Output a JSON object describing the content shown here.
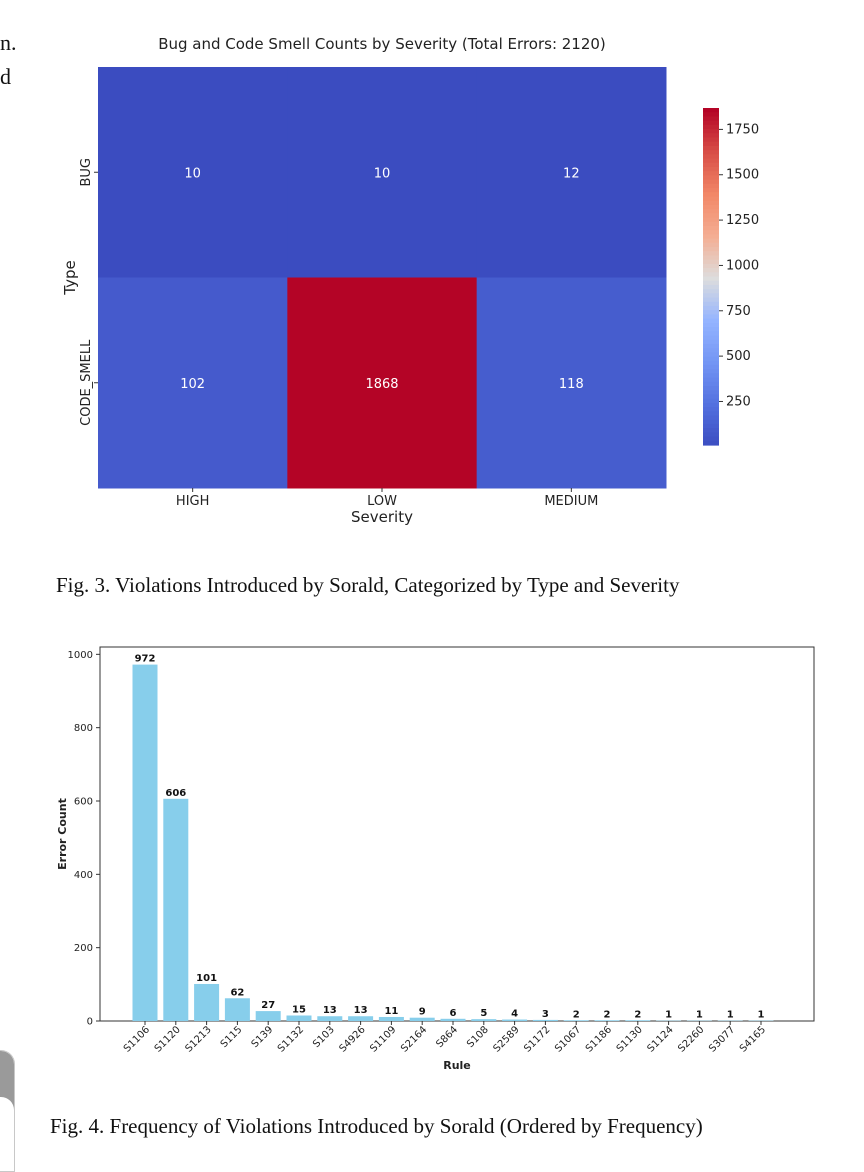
{
  "margin_fragments": [
    "n.",
    "d"
  ],
  "figure3": {
    "caption": "Fig. 3.  Violations Introduced by Sorald, Categorized by Type and Severity"
  },
  "figure4": {
    "caption": "Fig. 4.  Frequency of Violations Introduced by Sorald (Ordered by Frequency)"
  },
  "chart_data": [
    {
      "type": "heatmap",
      "title": "Bug and Code Smell Counts by Severity (Total Errors: 2120)",
      "xlabel": "Severity",
      "ylabel": "Type",
      "x_categories": [
        "HIGH",
        "LOW",
        "MEDIUM"
      ],
      "y_categories": [
        "BUG",
        "CODE_SMELL"
      ],
      "values": [
        [
          10,
          10,
          12
        ],
        [
          102,
          1868,
          118
        ]
      ],
      "colormap": "coolwarm",
      "vmin": 10,
      "vmax": 1868,
      "colorbar_ticks": [
        250,
        500,
        750,
        1000,
        1250,
        1500,
        1750
      ],
      "colors": {
        "low": "#3b4cc0",
        "mid": "#dddddd",
        "high": "#b40426"
      }
    },
    {
      "type": "bar",
      "xlabel": "Rule",
      "ylabel": "Error Count",
      "categories": [
        "S1106",
        "S1120",
        "S1213",
        "S115",
        "S139",
        "S1132",
        "S103",
        "S4926",
        "S1109",
        "S2164",
        "S864",
        "S108",
        "S2589",
        "S1172",
        "S1067",
        "S1186",
        "S1130",
        "S1124",
        "S2260",
        "S3077",
        "S4165"
      ],
      "values": [
        972,
        606,
        101,
        62,
        27,
        15,
        13,
        13,
        11,
        9,
        6,
        5,
        4,
        3,
        2,
        2,
        2,
        1,
        1,
        1,
        1
      ],
      "ylim": [
        0,
        1020
      ],
      "yticks": [
        0,
        200,
        400,
        600,
        800,
        1000
      ],
      "bar_color": "#87ceeb",
      "grid": false
    }
  ]
}
